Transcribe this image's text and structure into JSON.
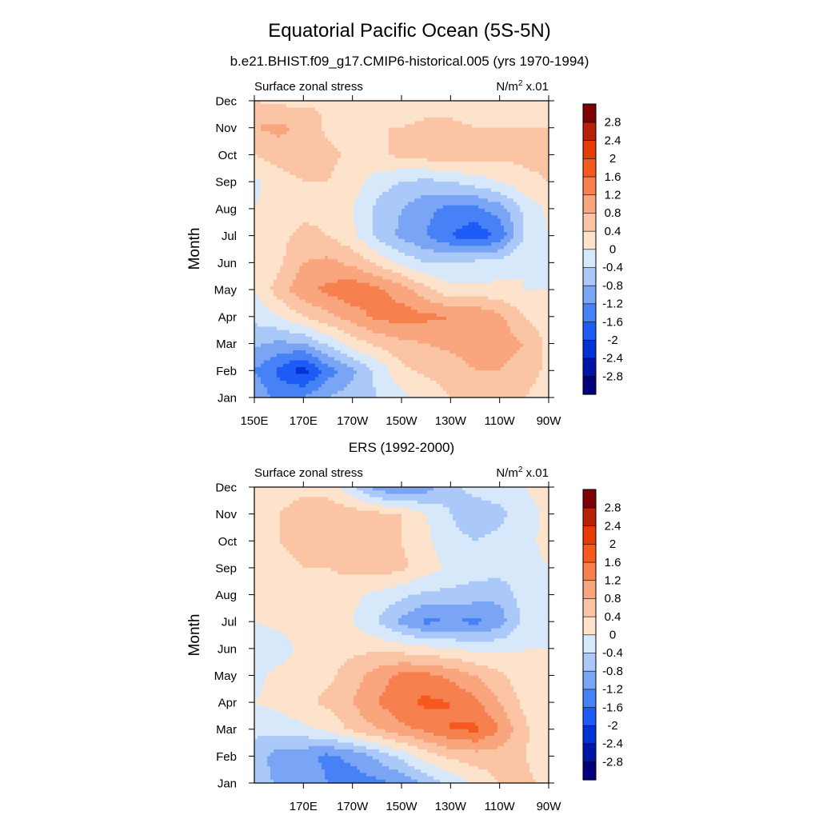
{
  "figure": {
    "title": "Equatorial Pacific Ocean (5S-5N)",
    "subtitle": "b.e21.BHIST.f09_g17.CMIP6-historical.005 (yrs 1970-1994)"
  },
  "chart_data": [
    {
      "type": "heatmap",
      "panel_title": "",
      "left_label": "Surface zonal stress",
      "units_base": "N/m",
      "units_exp": "2",
      "units_scale": " x.01",
      "ylabel": "Month",
      "x_tick_labels": [
        "150E",
        "170E",
        "170W",
        "150W",
        "130W",
        "110W",
        "90W"
      ],
      "x_tick_lon": [
        150,
        170,
        190,
        210,
        230,
        250,
        270
      ],
      "xlim": [
        150,
        270
      ],
      "y_tick_labels": [
        "Jan",
        "Feb",
        "Mar",
        "Apr",
        "May",
        "Jun",
        "Jul",
        "Aug",
        "Sep",
        "Oct",
        "Nov",
        "Dec"
      ],
      "colorbar_labels": [
        "-2.8",
        "-2.4",
        "-2",
        "-1.6",
        "-1.2",
        "-0.8",
        "-0.4",
        "0",
        "0.4",
        "0.8",
        "1.2",
        "1.6",
        "2",
        "2.4",
        "2.8"
      ],
      "colorbar_colors": [
        "#00007d",
        "#0014aa",
        "#0033d6",
        "#1e5af5",
        "#4682f5",
        "#7aa5f5",
        "#aac8f8",
        "#d7e8fa",
        "#fde3cc",
        "#fbc4a4",
        "#f9a57e",
        "#f7804f",
        "#f5591e",
        "#e63a07",
        "#b82008",
        "#7d0005"
      ],
      "lon": [
        150,
        160,
        170,
        180,
        190,
        200,
        210,
        220,
        230,
        240,
        250,
        260,
        270
      ],
      "values": [
        [
          -0.9,
          -1.3,
          -1.2,
          -0.8,
          -0.6,
          -0.4,
          -0.1,
          0.1,
          0.4,
          0.6,
          0.6,
          0.4,
          0.2
        ],
        [
          -1.2,
          -1.7,
          -2.2,
          -1.4,
          -0.9,
          -0.3,
          0.3,
          0.5,
          0.6,
          0.8,
          0.8,
          0.6,
          0.3
        ],
        [
          -0.7,
          -0.9,
          -0.8,
          -0.3,
          0.2,
          0.5,
          0.7,
          0.8,
          0.9,
          1.0,
          1.0,
          0.8,
          0.3
        ],
        [
          -0.3,
          0.0,
          0.4,
          0.7,
          1.0,
          1.3,
          1.4,
          1.3,
          1.2,
          1.2,
          0.9,
          0.4,
          0.1
        ],
        [
          0.0,
          0.6,
          1.1,
          1.3,
          1.5,
          1.3,
          1.0,
          0.5,
          0.1,
          0.1,
          0.1,
          0.0,
          0.0
        ],
        [
          0.0,
          0.3,
          0.8,
          0.9,
          0.7,
          0.3,
          -0.1,
          -0.4,
          -0.4,
          -0.3,
          -0.2,
          0.0,
          0.0
        ],
        [
          0.1,
          0.3,
          0.5,
          0.4,
          0.1,
          -0.5,
          -0.9,
          -1.2,
          -1.6,
          -1.9,
          -1.5,
          -0.4,
          0.0
        ],
        [
          0.0,
          0.2,
          0.3,
          0.3,
          0.0,
          -0.5,
          -0.8,
          -1.1,
          -1.3,
          -1.3,
          -1.0,
          -0.3,
          0.1
        ],
        [
          -0.1,
          0.2,
          0.4,
          0.4,
          0.2,
          -0.2,
          -0.4,
          -0.5,
          -0.4,
          -0.2,
          0.0,
          0.3,
          0.4
        ],
        [
          0.4,
          0.6,
          0.7,
          0.5,
          0.3,
          0.3,
          0.5,
          0.6,
          0.7,
          0.6,
          0.5,
          0.5,
          0.5
        ],
        [
          0.8,
          0.9,
          0.7,
          0.3,
          0.3,
          0.4,
          0.4,
          0.5,
          0.5,
          0.4,
          0.4,
          0.4,
          0.4
        ],
        [
          0.4,
          0.3,
          0.3,
          0.4,
          0.3,
          0.2,
          0.2,
          0.2,
          0.2,
          0.2,
          0.2,
          0.2,
          0.2
        ]
      ]
    },
    {
      "type": "heatmap",
      "panel_title": "ERS (1992-2000)",
      "left_label": "Surface zonal stress",
      "units_base": "N/m",
      "units_exp": "2",
      "units_scale": " x.01",
      "ylabel": "Month",
      "x_tick_labels": [
        "170E",
        "170W",
        "150W",
        "130W",
        "110W",
        "90W"
      ],
      "x_tick_lon": [
        170,
        190,
        210,
        230,
        250,
        270
      ],
      "xlim": [
        150,
        270
      ],
      "y_tick_labels": [
        "Jan",
        "Feb",
        "Mar",
        "Apr",
        "May",
        "Jun",
        "Jul",
        "Aug",
        "Sep",
        "Oct",
        "Nov",
        "Dec"
      ],
      "colorbar_labels": [
        "-2.8",
        "-2.4",
        "-2",
        "-1.6",
        "-1.2",
        "-0.8",
        "-0.4",
        "0",
        "0.4",
        "0.8",
        "1.2",
        "1.6",
        "2",
        "2.4",
        "2.8"
      ],
      "colorbar_colors": [
        "#00007d",
        "#0014aa",
        "#0033d6",
        "#1e5af5",
        "#4682f5",
        "#7aa5f5",
        "#aac8f8",
        "#d7e8fa",
        "#fde3cc",
        "#fbc4a4",
        "#f9a57e",
        "#f7804f",
        "#f5591e",
        "#e63a07",
        "#b82008",
        "#7d0005"
      ],
      "lon": [
        150,
        160,
        170,
        180,
        190,
        200,
        210,
        220,
        230,
        240,
        250,
        260,
        270
      ],
      "values": [
        [
          -0.5,
          -0.9,
          -0.9,
          -1.2,
          -1.4,
          -1.3,
          -1.1,
          -0.7,
          -0.3,
          0.1,
          0.4,
          0.5,
          0.3
        ],
        [
          -0.6,
          -1.0,
          -1.1,
          -1.3,
          -1.1,
          -0.7,
          -0.3,
          0.2,
          0.5,
          0.6,
          0.6,
          0.4,
          0.2
        ],
        [
          -0.3,
          -0.2,
          -0.1,
          0.1,
          0.5,
          0.8,
          1.1,
          1.3,
          1.6,
          1.7,
          1.2,
          0.5,
          0.0
        ],
        [
          0.0,
          0.1,
          0.3,
          0.5,
          0.8,
          1.2,
          1.5,
          1.7,
          1.6,
          1.3,
          0.8,
          0.3,
          0.0
        ],
        [
          -0.1,
          0.1,
          0.2,
          0.3,
          0.6,
          1.0,
          1.3,
          1.3,
          1.1,
          0.8,
          0.5,
          0.1,
          0.0
        ],
        [
          -0.3,
          -0.2,
          0.1,
          0.2,
          0.3,
          0.3,
          0.2,
          0.1,
          0.0,
          -0.1,
          -0.1,
          0.0,
          0.0
        ],
        [
          0.0,
          0.1,
          0.2,
          0.2,
          0.0,
          -0.4,
          -0.9,
          -1.3,
          -1.2,
          -1.3,
          -1.0,
          -0.3,
          0.0
        ],
        [
          0.1,
          0.2,
          0.3,
          0.3,
          0.1,
          -0.1,
          -0.3,
          -0.5,
          -0.5,
          -0.6,
          -0.7,
          -0.2,
          0.0
        ],
        [
          0.2,
          0.3,
          0.4,
          0.4,
          0.5,
          0.6,
          0.5,
          0.2,
          -0.1,
          -0.2,
          -0.2,
          -0.1,
          0.0
        ],
        [
          0.3,
          0.4,
          0.5,
          0.4,
          0.5,
          0.5,
          0.4,
          0.1,
          -0.3,
          -0.4,
          -0.3,
          -0.1,
          0.1
        ],
        [
          0.2,
          0.4,
          0.6,
          0.7,
          0.6,
          0.5,
          0.4,
          0.0,
          -0.4,
          -0.6,
          -0.5,
          -0.2,
          0.1
        ],
        [
          0.1,
          0.2,
          0.3,
          0.2,
          -0.3,
          -1.0,
          -1.3,
          -1.0,
          -0.5,
          -0.3,
          -0.2,
          0.0,
          0.2
        ]
      ]
    }
  ]
}
